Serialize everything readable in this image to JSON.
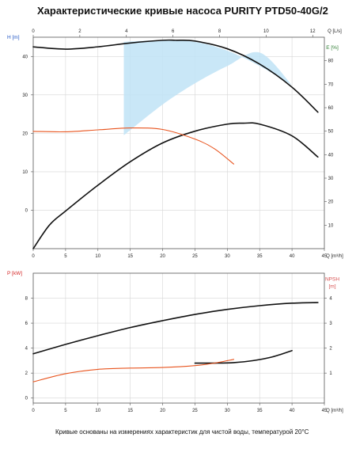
{
  "title": "Характеристические кривые насоса PURITY PTD50-40G/2",
  "footnote": "Кривые основаны на измерениях характеристик для чистой воды, температурой 20°C",
  "colors": {
    "curve": "#111111",
    "efficiency_curve": "#e8541e",
    "shade": "#bfe3f6",
    "grid": "#d6d6d6",
    "left_axis_head": "#1f55c4",
    "left_axis_power": "#d42424",
    "right_axis_eff": "#2e7d32",
    "right_axis_npsh": "#d85050"
  },
  "chart_data": [
    {
      "type": "line",
      "name": "head-efficiency",
      "xlabel": "Q [m³/h]",
      "x2label": "Q [L/s]",
      "ylabel": "H [m]",
      "y2label": "E [%]",
      "xlim": [
        0,
        45
      ],
      "x_ticks": [
        0,
        5,
        10,
        15,
        20,
        25,
        30,
        35,
        40,
        45
      ],
      "x2lim": [
        0,
        12.5
      ],
      "x2_ticks": [
        0,
        2,
        4,
        6,
        8,
        10,
        12
      ],
      "ylim": [
        -10,
        45
      ],
      "y_ticks": [
        0,
        10,
        20,
        30,
        40
      ],
      "y2lim": [
        0,
        90
      ],
      "y2_ticks": [
        10,
        20,
        30,
        40,
        50,
        60,
        70,
        80
      ],
      "grid": true,
      "shaded_region": {
        "upper": {
          "x": [
            14,
            20,
            25,
            30,
            35,
            40
          ],
          "y": [
            43.8,
            44.2,
            43.8,
            41.5,
            37.5,
            32.5
          ]
        },
        "lower": {
          "x": [
            14,
            20,
            25,
            30,
            35,
            40
          ],
          "y": [
            19.5,
            27.5,
            33,
            37.5,
            41,
            32.5
          ]
        }
      },
      "series": [
        {
          "role": "head",
          "axis": "left",
          "color_key": "curve",
          "x": [
            0,
            5,
            10,
            15,
            20,
            22,
            25,
            30,
            35,
            40,
            44
          ],
          "y": [
            42.5,
            41.9,
            42.5,
            43.5,
            44.2,
            44.2,
            44.0,
            42.0,
            38.0,
            32.0,
            25.5
          ]
        },
        {
          "role": "efficiency",
          "axis": "right",
          "color_key": "curve",
          "x": [
            0,
            2.5,
            5,
            10,
            15,
            20,
            25,
            30,
            32.5,
            35,
            40,
            44
          ],
          "y": [
            0,
            10,
            16,
            27,
            37,
            45,
            50,
            53,
            53.4,
            53,
            48,
            39
          ]
        },
        {
          "role": "npsh-overlay",
          "axis": "left",
          "color_key": "efficiency_curve",
          "x": [
            0,
            5,
            10,
            15,
            20,
            25,
            28,
            31
          ],
          "y": [
            20.5,
            20.4,
            20.9,
            21.4,
            21.0,
            18.5,
            16.0,
            12.0
          ]
        }
      ]
    },
    {
      "type": "line",
      "name": "power-npsh",
      "xlabel": "Q [m³/h]",
      "ylabel": "P [kW]",
      "y2label": "NPSH\n[m]",
      "xlim": [
        0,
        45
      ],
      "x_ticks": [
        0,
        5,
        10,
        15,
        20,
        25,
        30,
        35,
        40,
        45
      ],
      "ylim": [
        -0.4,
        10
      ],
      "y_ticks": [
        0,
        2,
        4,
        6,
        8
      ],
      "y2lim": [
        -0.2,
        5
      ],
      "y2_ticks": [
        1,
        2,
        3,
        4
      ],
      "grid": true,
      "series": [
        {
          "role": "power",
          "axis": "left",
          "color_key": "curve",
          "x": [
            0,
            5,
            10,
            15,
            20,
            25,
            30,
            35,
            40,
            44
          ],
          "y": [
            3.55,
            4.3,
            5.0,
            5.65,
            6.2,
            6.7,
            7.1,
            7.4,
            7.6,
            7.65
          ]
        },
        {
          "role": "npsh",
          "axis": "right",
          "color_key": "curve",
          "x": [
            25,
            28,
            31,
            34,
            37,
            40
          ],
          "y": [
            1.4,
            1.4,
            1.42,
            1.5,
            1.65,
            1.9
          ]
        },
        {
          "role": "power-overlay",
          "axis": "left",
          "color_key": "efficiency_curve",
          "x": [
            0,
            5,
            10,
            15,
            20,
            25,
            28,
            31
          ],
          "y": [
            1.3,
            1.95,
            2.3,
            2.4,
            2.45,
            2.6,
            2.8,
            3.1
          ]
        }
      ]
    }
  ]
}
